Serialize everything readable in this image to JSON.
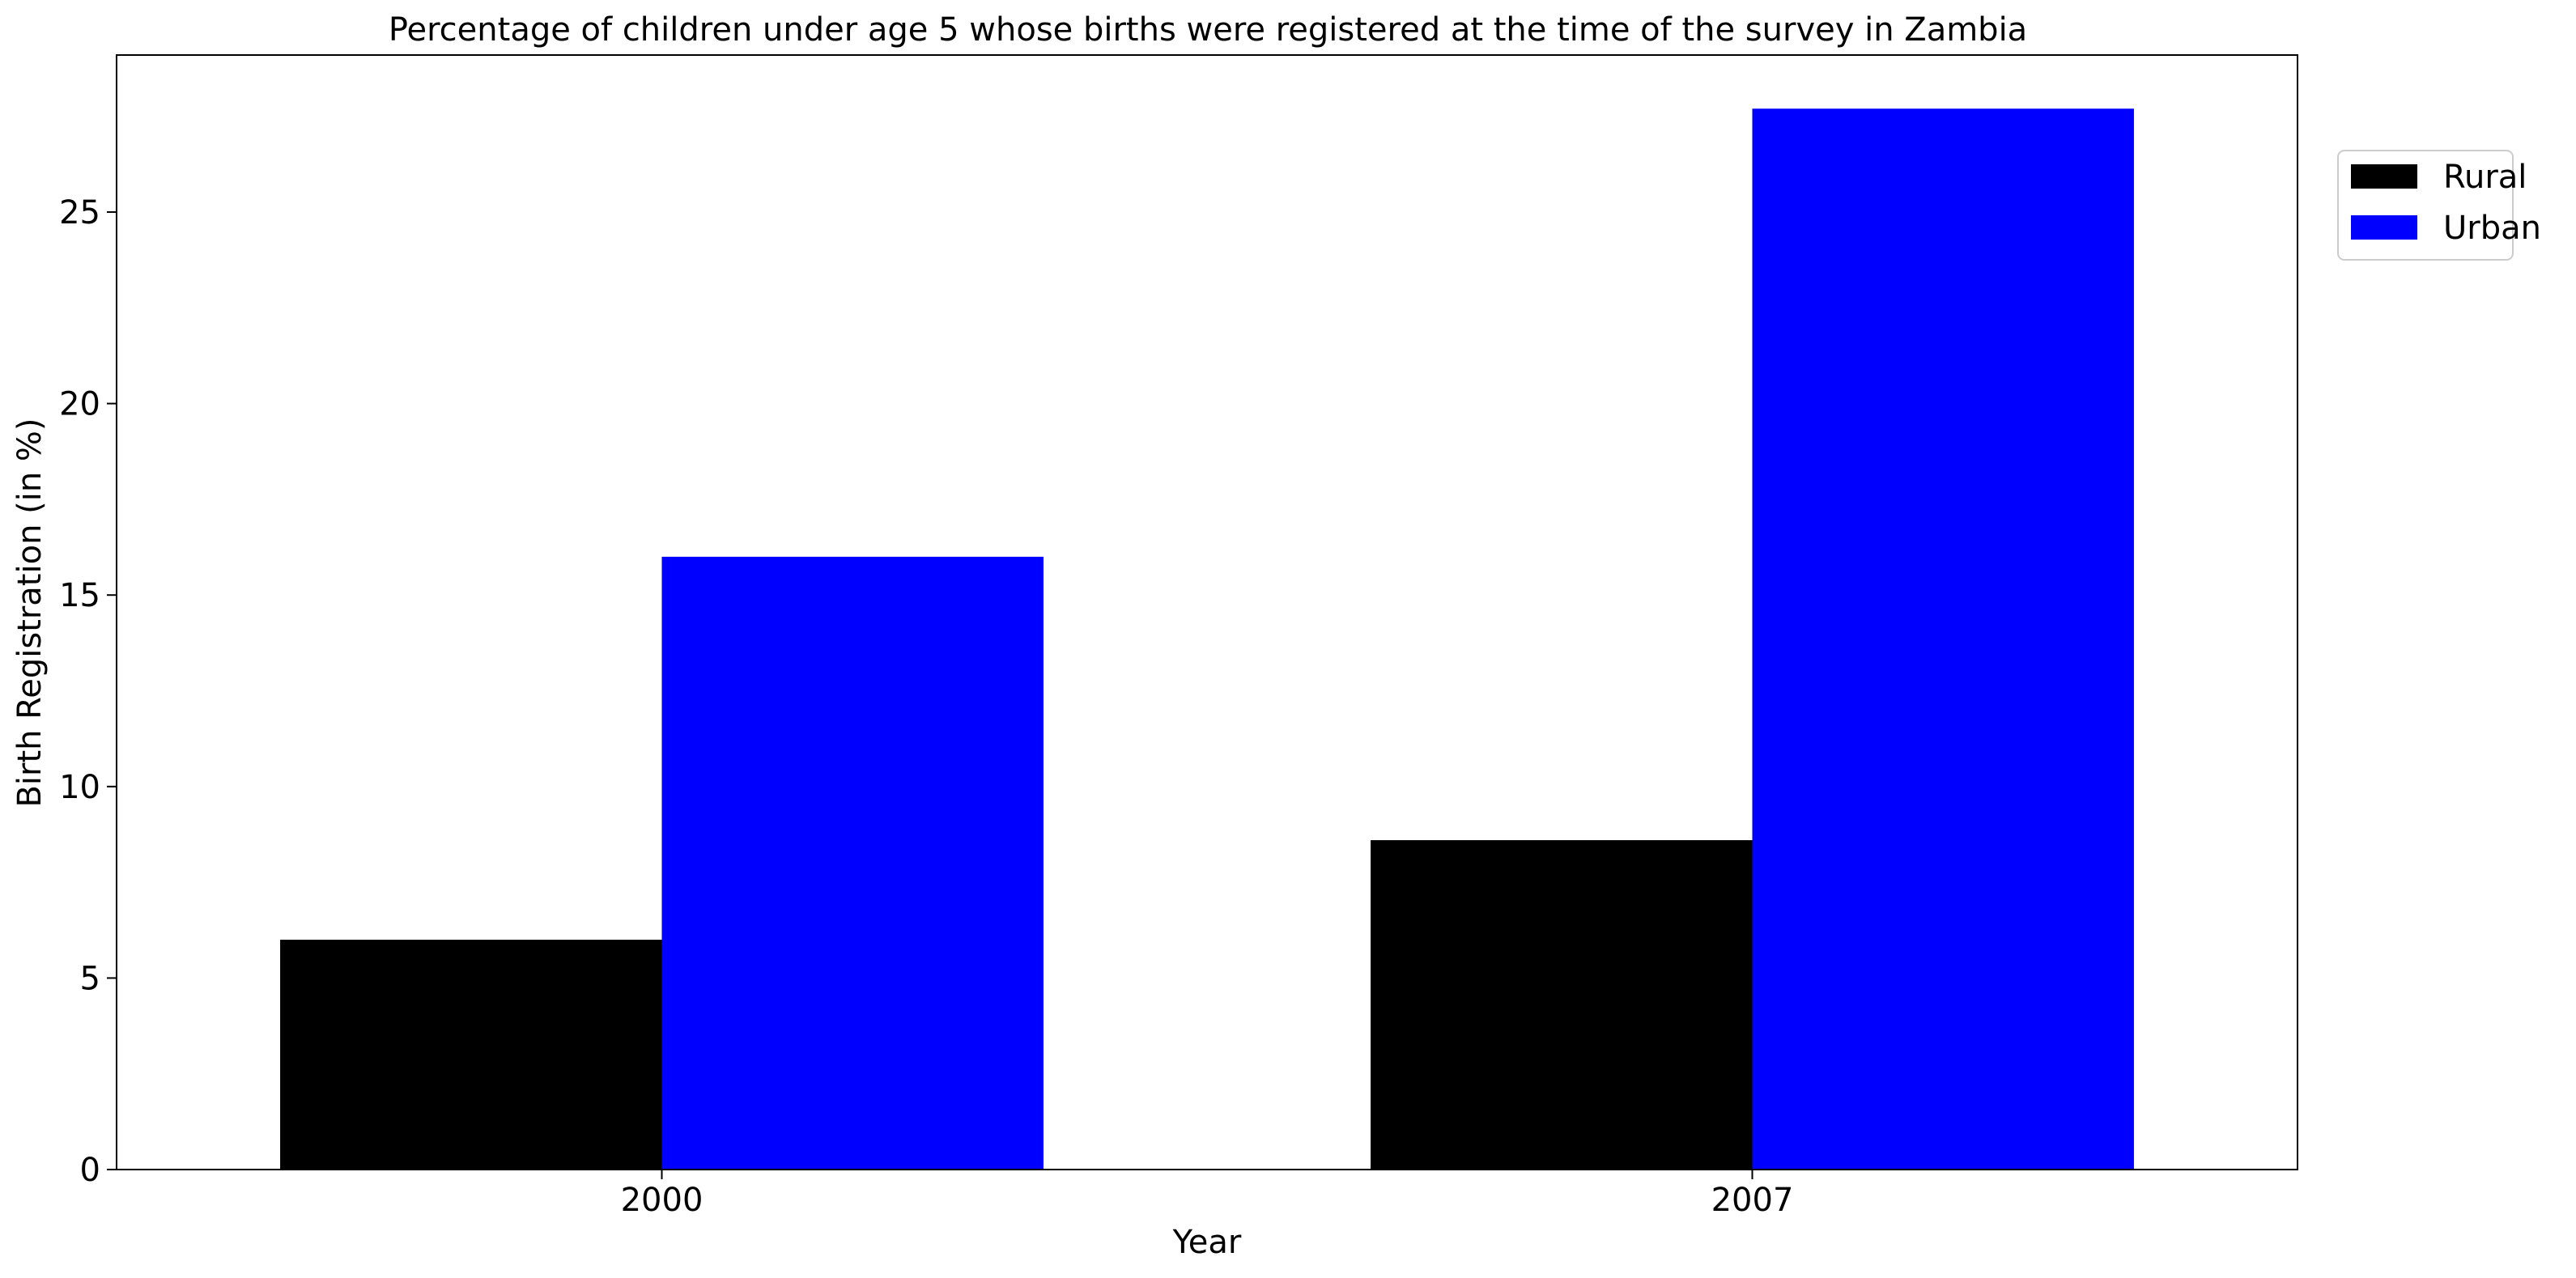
{
  "chart_data": {
    "type": "bar",
    "title": "Percentage of children under age 5 whose births were registered at the time of the survey in Zambia",
    "xlabel": "Year",
    "ylabel": "Birth Registration (in %)",
    "categories": [
      "2000",
      "2007"
    ],
    "series": [
      {
        "name": "Rural",
        "color": "#000000",
        "values": [
          6.0,
          8.6
        ]
      },
      {
        "name": "Urban",
        "color": "#0000ff",
        "values": [
          16.0,
          27.7
        ]
      }
    ],
    "ylim": [
      0,
      29.1
    ],
    "yticks": [
      0,
      5,
      10,
      15,
      20,
      25
    ],
    "grid": false,
    "legend_position": "top-right, outside plot area"
  }
}
